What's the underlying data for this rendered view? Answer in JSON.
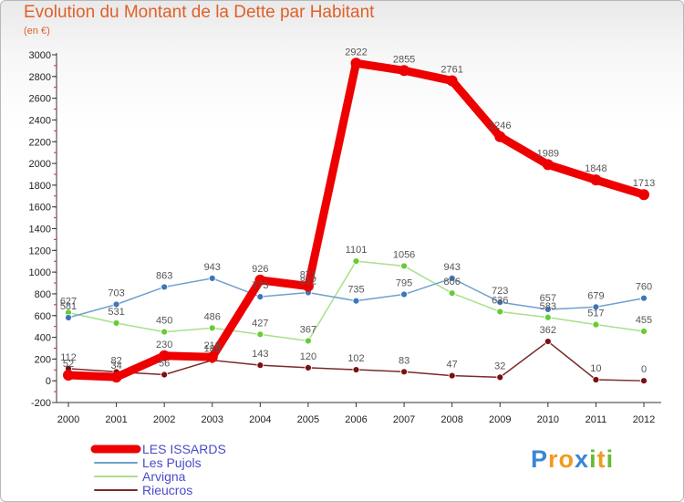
{
  "chart_data": {
    "type": "line",
    "title": "Evolution du Montant de la Dette par Habitant",
    "subtitle": "(en €)",
    "x": [
      "2000",
      "2001",
      "2002",
      "2003",
      "2004",
      "2005",
      "2006",
      "2007",
      "2008",
      "2009",
      "2010",
      "2011",
      "2012"
    ],
    "ylim": [
      -200,
      3000
    ],
    "yticks": [
      -200,
      0,
      200,
      400,
      600,
      800,
      1000,
      1200,
      1400,
      1600,
      1800,
      2000,
      2200,
      2400,
      2600,
      2800,
      3000
    ],
    "grid": false,
    "legend_position": "bottom-left",
    "series": [
      {
        "name": "Rieucros",
        "color": "#7a2a2a",
        "marker": "#7a1010",
        "values": [
          112,
          82,
          56,
          189,
          143,
          120,
          102,
          83,
          47,
          32,
          362,
          10,
          0
        ]
      },
      {
        "name": "Arvigna",
        "color": "#a8e08a",
        "marker": "#66cc33",
        "values": [
          627,
          531,
          450,
          486,
          427,
          367,
          1101,
          1056,
          806,
          636,
          583,
          517,
          455
        ]
      },
      {
        "name": "Les Pujols",
        "color": "#6fa0d0",
        "marker": "#3f76b8",
        "values": [
          581,
          703,
          863,
          943,
          773,
          812,
          735,
          795,
          943,
          723,
          657,
          679,
          760
        ]
      },
      {
        "name": "LES ISSARDS",
        "color": "#ee0000",
        "marker": "#ee0000",
        "values": [
          52,
          34,
          230,
          218,
          926,
          871,
          2922,
          2855,
          2761,
          2246,
          1989,
          1848,
          1713
        ]
      }
    ]
  },
  "legend": [
    {
      "name": "LES ISSARDS",
      "color": "#ee0000"
    },
    {
      "name": "Les Pujols",
      "color": "#6fa0d0"
    },
    {
      "name": "Arvigna",
      "color": "#a8e08a"
    },
    {
      "name": "Rieucros",
      "color": "#7a2a2a"
    }
  ],
  "brand": {
    "letters": [
      "P",
      "r",
      "o",
      "x",
      "i",
      "t",
      "i"
    ],
    "colors": [
      "#3a86d6",
      "#f39a1e",
      "#f39a1e",
      "#3a86d6",
      "#66bb33",
      "#f39a1e",
      "#66bb33"
    ]
  }
}
